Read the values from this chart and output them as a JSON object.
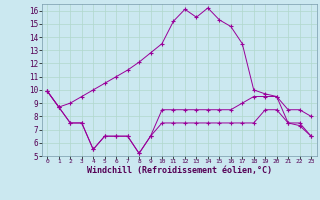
{
  "xlabel": "Windchill (Refroidissement éolien,°C)",
  "background_color": "#cbe8f0",
  "grid_color": "#b0d8cc",
  "line_color": "#990099",
  "hours": [
    0,
    1,
    2,
    3,
    4,
    5,
    6,
    7,
    8,
    9,
    10,
    11,
    12,
    13,
    14,
    15,
    16,
    17,
    18,
    19,
    20,
    21,
    22,
    23
  ],
  "line1": [
    9.9,
    8.7,
    9.0,
    9.5,
    10.0,
    10.5,
    11.0,
    11.5,
    12.1,
    12.8,
    13.5,
    15.2,
    16.1,
    15.5,
    16.2,
    15.3,
    14.8,
    13.5,
    10.0,
    9.7,
    9.5,
    7.5,
    7.5,
    6.5
  ],
  "line2": [
    9.9,
    8.7,
    7.5,
    7.5,
    5.5,
    6.5,
    6.5,
    6.5,
    5.2,
    6.5,
    7.5,
    7.5,
    7.5,
    7.5,
    7.5,
    7.5,
    7.5,
    7.5,
    7.5,
    8.5,
    8.5,
    7.5,
    7.3,
    6.5
  ],
  "line3": [
    9.9,
    8.7,
    7.5,
    7.5,
    5.5,
    6.5,
    6.5,
    6.5,
    5.2,
    6.5,
    8.5,
    8.5,
    8.5,
    8.5,
    8.5,
    8.5,
    8.5,
    9.0,
    9.5,
    9.5,
    9.5,
    8.5,
    8.5,
    8.0
  ],
  "ylim": [
    5,
    16.5
  ],
  "yticks": [
    5,
    6,
    7,
    8,
    9,
    10,
    11,
    12,
    13,
    14,
    15,
    16
  ],
  "xlim": [
    -0.5,
    23.5
  ],
  "xtick_labels": [
    "0",
    "1",
    "2",
    "3",
    "4",
    "5",
    "6",
    "7",
    "8",
    "9",
    "10",
    "11",
    "12",
    "13",
    "14",
    "15",
    "16",
    "17",
    "18",
    "19",
    "20",
    "21",
    "22",
    "23"
  ]
}
